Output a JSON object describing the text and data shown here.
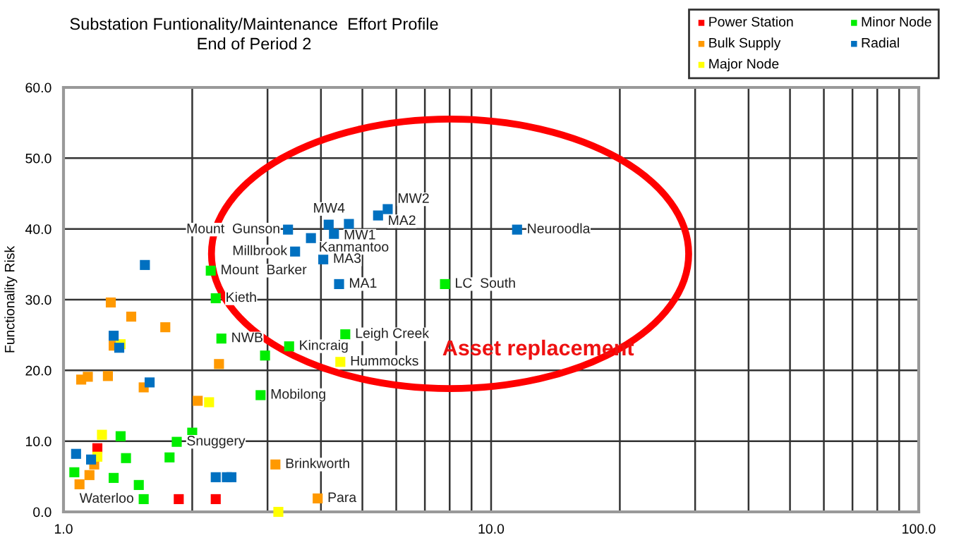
{
  "chart_data": {
    "type": "scatter",
    "title": "Substation Funtionality/Maintenance  Effort Profile",
    "subtitle": "End of Period 2",
    "ylabel": "Functionality Risk",
    "log": "x",
    "grid": true,
    "legend": "top right",
    "marker": "square",
    "xlim": [
      1,
      100
    ],
    "ylim": [
      0,
      60
    ],
    "xticks": [
      {
        "value": 1,
        "label": "1.0"
      },
      {
        "value": 2,
        "label": null
      },
      {
        "value": 3,
        "label": null
      },
      {
        "value": 4,
        "label": null
      },
      {
        "value": 5,
        "label": null
      },
      {
        "value": 6,
        "label": null
      },
      {
        "value": 7,
        "label": null
      },
      {
        "value": 8,
        "label": null
      },
      {
        "value": 9,
        "label": null
      },
      {
        "value": 10,
        "label": "10.0"
      },
      {
        "value": 20,
        "label": null
      },
      {
        "value": 30,
        "label": null
      },
      {
        "value": 40,
        "label": null
      },
      {
        "value": 50,
        "label": null
      },
      {
        "value": 60,
        "label": null
      },
      {
        "value": 70,
        "label": null
      },
      {
        "value": 80,
        "label": null
      },
      {
        "value": 90,
        "label": null
      },
      {
        "value": 100,
        "label": "100.0"
      }
    ],
    "yticks": [
      {
        "value": 0,
        "label": "0.0"
      },
      {
        "value": 10,
        "label": "10.0"
      },
      {
        "value": 20,
        "label": "20.0"
      },
      {
        "value": 30,
        "label": "30.0"
      },
      {
        "value": 40,
        "label": "40.0"
      },
      {
        "value": 50,
        "label": "50.0"
      },
      {
        "value": 60,
        "label": "60.0"
      }
    ],
    "series": [
      {
        "name": "Power Station",
        "color": "#ff0000",
        "x": [
          1.2,
          1.86,
          2.27
        ],
        "values": [
          9.0,
          1.8,
          1.8
        ]
      },
      {
        "name": "Bulk Supply",
        "color": "#ff9900",
        "x": [
          1.29,
          1.44,
          1.73,
          1.31,
          1.1,
          1.14,
          1.27,
          1.54,
          2.31,
          2.06,
          1.15,
          1.09,
          1.18,
          3.13,
          3.93
        ],
        "values": [
          29.6,
          27.6,
          26.1,
          23.5,
          18.7,
          19.1,
          19.2,
          17.6,
          20.9,
          15.7,
          5.2,
          3.9,
          6.7,
          6.7,
          1.9
        ]
      },
      {
        "name": "Major Node",
        "color": "#ffff00",
        "x": [
          2.19,
          1.23,
          1.2,
          3.18,
          4.44,
          1.36
        ],
        "values": [
          15.5,
          10.9,
          7.8,
          0,
          21.2,
          23.7
        ]
      },
      {
        "name": "Minor Node",
        "color": "#00ee00",
        "x": [
          2.21,
          2.27,
          2.34,
          2.96,
          3.37,
          2.89,
          4.56,
          7.8,
          1.84,
          2.0,
          1.36,
          1.4,
          1.77,
          1.06,
          1.31,
          1.5,
          1.54
        ],
        "values": [
          34.1,
          30.2,
          24.5,
          22.1,
          23.4,
          16.5,
          25.1,
          32.2,
          9.9,
          11.2,
          10.7,
          7.6,
          7.7,
          5.6,
          4.8,
          3.8,
          1.8
        ]
      },
      {
        "name": "Radial",
        "color": "#0070c0",
        "x": [
          1.55,
          1.31,
          1.35,
          1.59,
          1.07,
          1.16,
          2.27,
          2.41,
          2.47,
          3.35,
          3.79,
          4.17,
          4.65,
          4.29,
          5.44,
          5.73,
          3.48,
          4.05,
          4.41,
          11.5
        ],
        "values": [
          34.9,
          24.9,
          23.2,
          18.3,
          8.2,
          7.4,
          4.9,
          4.9,
          4.9,
          39.9,
          38.7,
          40.6,
          40.7,
          39.3,
          41.9,
          42.8,
          36.8,
          35.7,
          32.2,
          39.9
        ]
      }
    ],
    "annotations": [
      {
        "text": "Mount  Gunson",
        "x": 3.35,
        "y": 39.9
      },
      {
        "text": "Kanmantoo",
        "x": 3.79,
        "y": 38.7
      },
      {
        "text": "MW4",
        "x": 4.17,
        "y": 40.6
      },
      {
        "text": "MA2",
        "x": 5.44,
        "y": 41.9
      },
      {
        "text": "MW1",
        "x": 4.29,
        "y": 39.3
      },
      {
        "text": "MW2",
        "x": 5.73,
        "y": 42.8
      },
      {
        "text": "Millbrook",
        "x": 3.48,
        "y": 36.8
      },
      {
        "text": "MA3",
        "x": 4.05,
        "y": 35.7
      },
      {
        "text": "MA1",
        "x": 4.41,
        "y": 32.2
      },
      {
        "text": "Neuroodla",
        "x": 11.5,
        "y": 39.9
      },
      {
        "text": "LC  South",
        "x": 7.8,
        "y": 32.2
      },
      {
        "text": "Mount  Barker",
        "x": 2.21,
        "y": 34.1
      },
      {
        "text": "Kieth",
        "x": 2.27,
        "y": 30.2
      },
      {
        "text": "NWB",
        "x": 2.34,
        "y": 24.5
      },
      {
        "text": "Leigh Creek",
        "x": 4.56,
        "y": 25.1
      },
      {
        "text": "Kincraig",
        "x": 3.37,
        "y": 23.4
      },
      {
        "text": "Hummocks",
        "x": 4.44,
        "y": 21.2
      },
      {
        "text": "Mobilong",
        "x": 2.89,
        "y": 16.5
      },
      {
        "text": "Snuggery",
        "x": 1.84,
        "y": 9.9
      },
      {
        "text": "Brinkworth",
        "x": 3.13,
        "y": 6.7
      },
      {
        "text": "Para",
        "x": 3.93,
        "y": 1.9
      },
      {
        "text": "Waterloo",
        "x": 1.54,
        "y": 1.8
      },
      "Asset replacement"
    ]
  }
}
